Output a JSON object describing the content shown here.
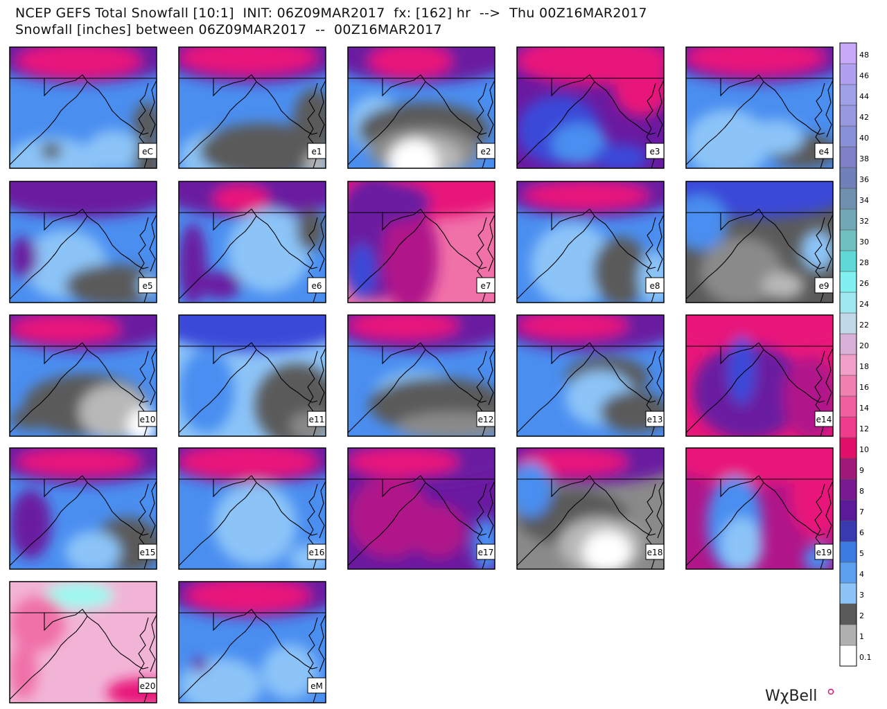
{
  "header": {
    "title": "NCEP GEFS Total Snowfall [10:1]  INIT: 06Z09MAR2017  fx: [162] hr  -->  Thu 00Z16MAR2017",
    "subtitle": "Snowfall [inches] between 06Z09MAR2017  --  00Z16MAR2017"
  },
  "panels": [
    {
      "label": "eC"
    },
    {
      "label": "e1"
    },
    {
      "label": "e2"
    },
    {
      "label": "e3"
    },
    {
      "label": "e4"
    },
    {
      "label": "e5"
    },
    {
      "label": "e6"
    },
    {
      "label": "e7"
    },
    {
      "label": "e8"
    },
    {
      "label": "e9"
    },
    {
      "label": "e10"
    },
    {
      "label": "e11"
    },
    {
      "label": "e12"
    },
    {
      "label": "e13"
    },
    {
      "label": "e14"
    },
    {
      "label": "e15"
    },
    {
      "label": "e16"
    },
    {
      "label": "e17"
    },
    {
      "label": "e18"
    },
    {
      "label": "e19"
    },
    {
      "label": "e20"
    },
    {
      "label": "eM"
    }
  ],
  "colorbar": {
    "labels": [
      "0.1",
      "1",
      "2",
      "3",
      "4",
      "5",
      "6",
      "7",
      "8",
      "9",
      "10",
      "12",
      "14",
      "16",
      "18",
      "20",
      "22",
      "24",
      "26",
      "28",
      "30",
      "32",
      "34",
      "36",
      "38",
      "40",
      "42",
      "44",
      "46",
      "48"
    ]
  },
  "logo": "WχBell"
}
